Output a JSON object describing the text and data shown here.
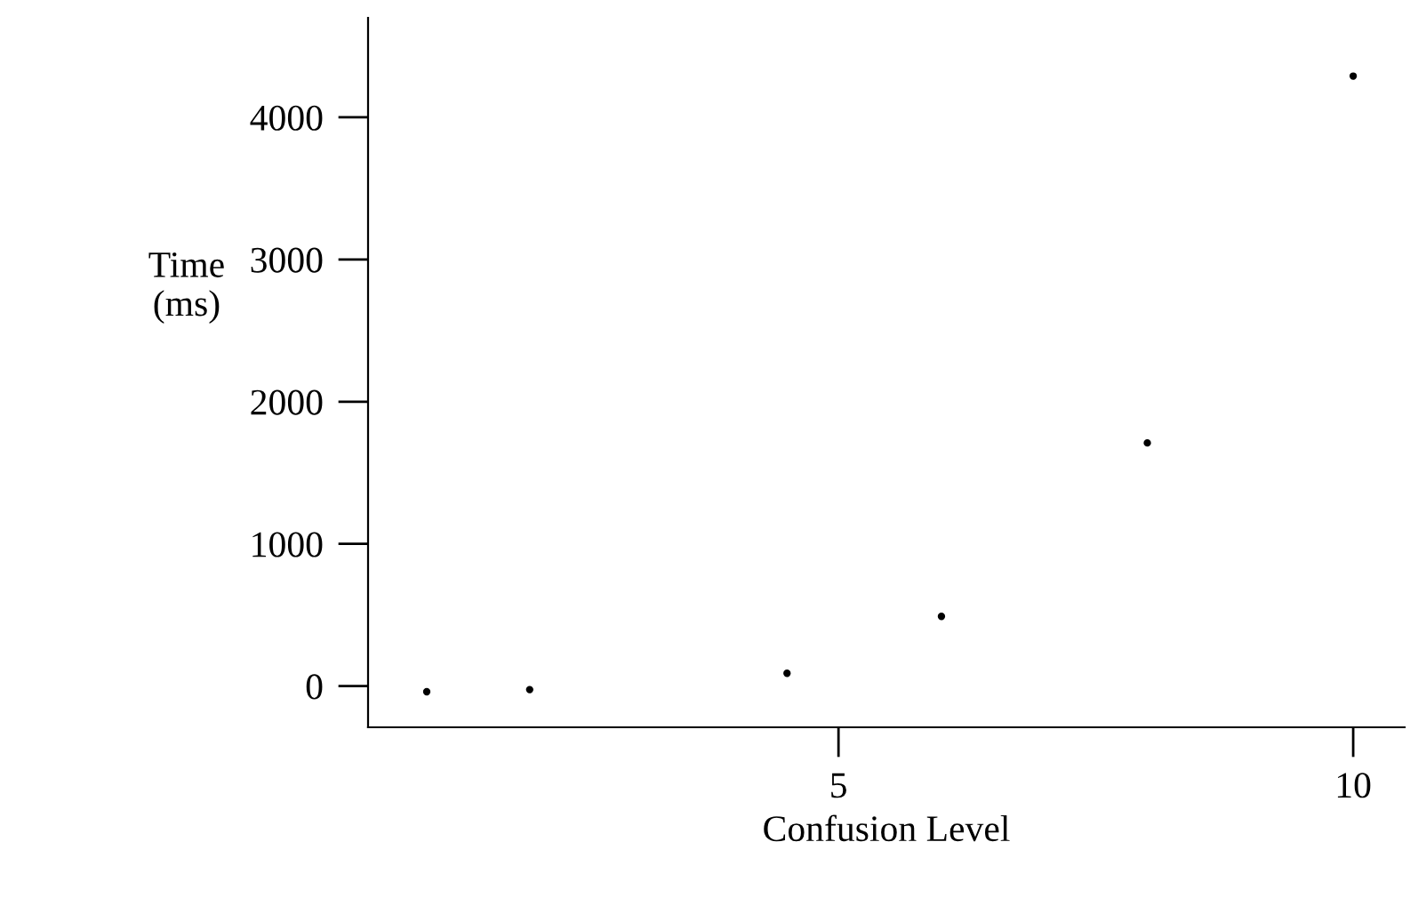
{
  "chart_data": {
    "type": "scatter",
    "xlabel": "Confusion Level",
    "ylabel": "Time\n(ms)",
    "x": [
      1,
      2,
      4.5,
      6,
      8,
      10
    ],
    "values": [
      -40,
      -25,
      90,
      490,
      1710,
      4290
    ],
    "color": "#000000",
    "marker": "circle",
    "xlim": [
      0.43,
      10.5
    ],
    "ylim": [
      -290,
      4700
    ],
    "xticks": [
      5,
      10
    ],
    "yticks": [
      0,
      1000,
      2000,
      3000,
      4000
    ],
    "grid": false
  }
}
